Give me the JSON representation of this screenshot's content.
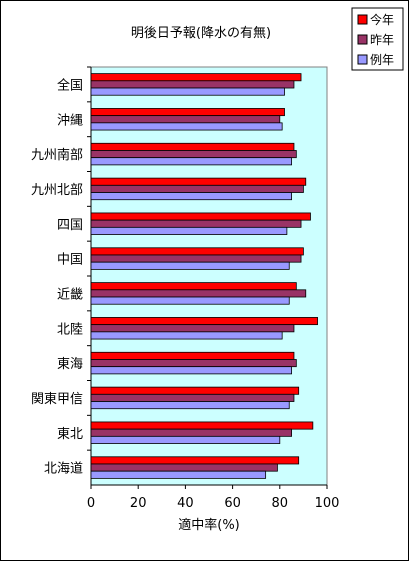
{
  "chart_data": {
    "type": "bar",
    "orientation": "horizontal",
    "title": "明後日予報(降水の有無)",
    "xlabel": "適中率(%)",
    "ylabel": "",
    "xlim": [
      0,
      100
    ],
    "x_ticks": [
      0,
      20,
      40,
      60,
      80,
      100
    ],
    "grid": false,
    "plot_background": "#ccffff",
    "legend_position": "top-right",
    "categories": [
      "全国",
      "沖縄",
      "九州南部",
      "九州北部",
      "四国",
      "中国",
      "近畿",
      "北陸",
      "東海",
      "関東甲信",
      "東北",
      "北海道"
    ],
    "series": [
      {
        "name": "今年",
        "color": "#ff0000",
        "values": [
          89,
          82,
          86,
          91,
          93,
          90,
          87,
          96,
          86,
          88,
          94,
          88
        ]
      },
      {
        "name": "昨年",
        "color": "#993366",
        "values": [
          86,
          80,
          87,
          90,
          89,
          89,
          91,
          86,
          87,
          86,
          85,
          79
        ]
      },
      {
        "name": "例年",
        "color": "#9999ff",
        "values": [
          82,
          81,
          85,
          85,
          83,
          84,
          84,
          81,
          85,
          84,
          80,
          74
        ]
      }
    ]
  }
}
